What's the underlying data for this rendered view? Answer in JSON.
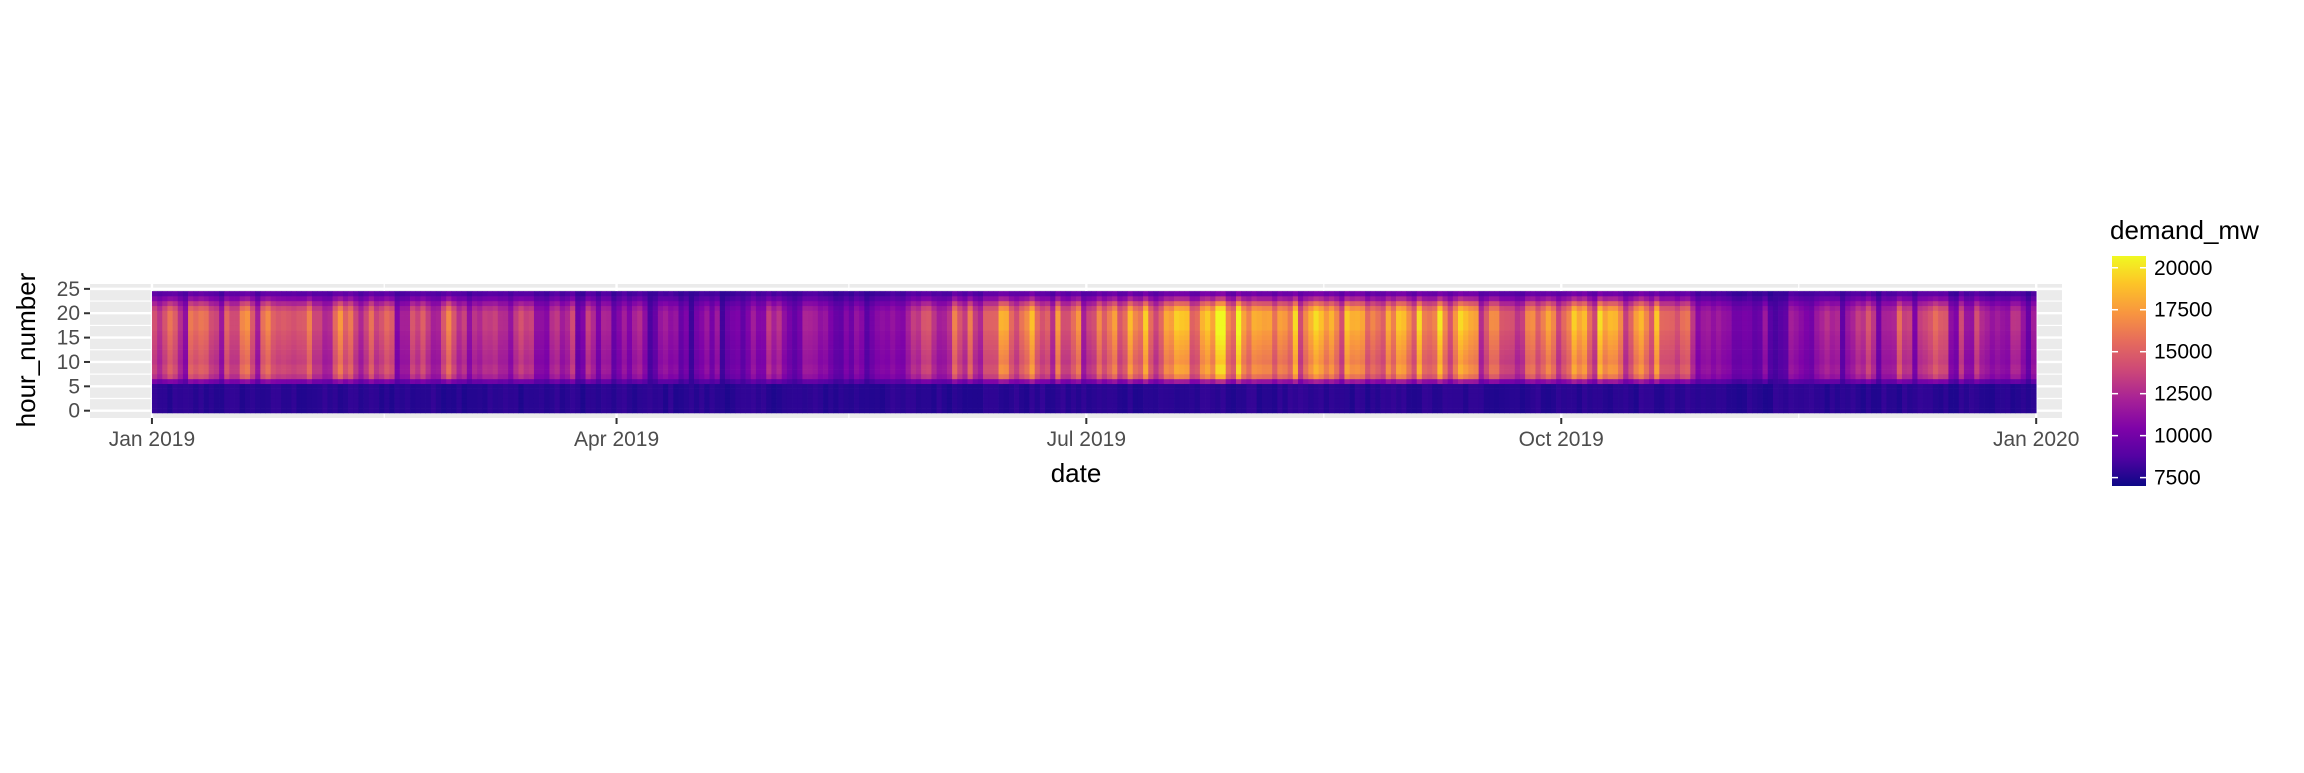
{
  "chart_data": {
    "type": "heatmap",
    "title": "",
    "xlabel": "date",
    "ylabel": "hour_number",
    "x_axis": {
      "type": "date",
      "range": [
        "2019-01-01",
        "2019-12-31"
      ],
      "limits": [
        "2018-12-20",
        "2020-01-06"
      ],
      "ticks": [
        {
          "value": "2019-01-01",
          "label": "Jan 2019"
        },
        {
          "value": "2019-04-01",
          "label": "Apr 2019"
        },
        {
          "value": "2019-07-01",
          "label": "Jul 2019"
        },
        {
          "value": "2019-10-01",
          "label": "Oct 2019"
        },
        {
          "value": "2020-01-01",
          "label": "Jan 2020"
        }
      ]
    },
    "y_axis": {
      "range": [
        0,
        24
      ],
      "limits": [
        -1.5,
        26
      ],
      "ticks": [
        {
          "value": 0,
          "label": "0"
        },
        {
          "value": 5,
          "label": "5"
        },
        {
          "value": 10,
          "label": "10"
        },
        {
          "value": 15,
          "label": "15"
        },
        {
          "value": 20,
          "label": "20"
        },
        {
          "value": 25,
          "label": "25"
        }
      ]
    },
    "grid": true,
    "legend": {
      "title": "demand_mw",
      "placement": "right",
      "min": 7000,
      "max": 20700,
      "ticks": [
        {
          "value": 7500,
          "label": "7500"
        },
        {
          "value": 10000,
          "label": "10000"
        },
        {
          "value": 12500,
          "label": "12500"
        },
        {
          "value": 15000,
          "label": "15000"
        },
        {
          "value": 17500,
          "label": "17500"
        },
        {
          "value": 20000,
          "label": "20000"
        }
      ],
      "colormap": "plasma"
    },
    "weekly_peak_demand_mw": [
      14500,
      15500,
      16000,
      17000,
      16000,
      16500,
      15500,
      14500,
      16000,
      15500,
      14000,
      13500,
      13000,
      12000,
      11500,
      11500,
      11000,
      12500,
      12500,
      11000,
      12000,
      13500,
      15500,
      18000,
      18500,
      16500,
      16000,
      19000,
      19500,
      20000,
      20500,
      19500,
      18500,
      19000,
      18500,
      19000,
      19500,
      16500,
      18000,
      19000,
      19500,
      18500,
      17500,
      12000,
      11500,
      11000,
      11500,
      13500,
      14500,
      15000,
      14000,
      13500
    ]
  }
}
